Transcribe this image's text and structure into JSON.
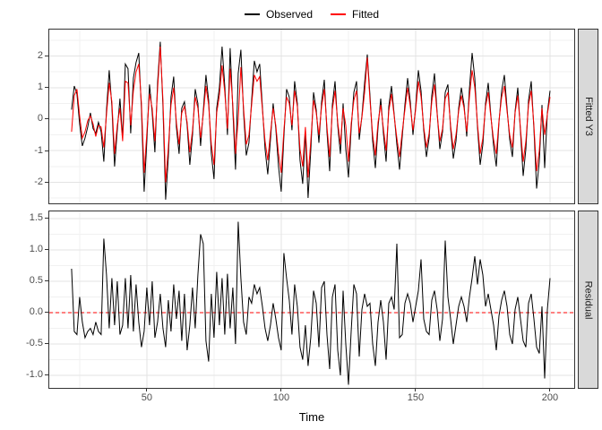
{
  "legend": {
    "items": [
      {
        "label": "Observed",
        "color": "#000000"
      },
      {
        "label": "Fitted",
        "color": "#ff0000"
      }
    ]
  },
  "xlabel": "Time",
  "colors": {
    "grid_major": "#e3e3e3",
    "grid_minor": "#f1f1f1",
    "panel_border": "#333333",
    "strip_fill": "#d9d9d9",
    "reference_line": "#ff0000",
    "observed": "#000000",
    "fitted": "#ff0000",
    "residual": "#000000"
  },
  "chart_data": [
    {
      "type": "line",
      "facet_label": "Fitted Y3",
      "x_start": 22,
      "x_step": 1,
      "xlim": [
        13.7,
        209
      ],
      "xticks": [
        50,
        100,
        150,
        200
      ],
      "xtick_labels": [
        "50",
        "100",
        "150",
        "200"
      ],
      "yticks": [
        2,
        1,
        0,
        -1,
        -2
      ],
      "ytick_labels": [
        "2",
        "1",
        "0",
        "-1",
        "-2"
      ],
      "ylim": [
        -2.67,
        2.84
      ],
      "grid": true,
      "legend_position": "top",
      "series": [
        {
          "name": "Observed",
          "color": "#000000",
          "values": [
            0.3,
            1.05,
            0.8,
            -0.15,
            -0.85,
            -0.6,
            -0.25,
            0.2,
            -0.3,
            -0.45,
            -0.1,
            -0.4,
            -1.35,
            0.3,
            1.55,
            0.4,
            -1.5,
            -0.35,
            0.65,
            -0.6,
            1.75,
            1.6,
            -0.45,
            1.3,
            1.8,
            2.1,
            0.3,
            -2.3,
            -0.7,
            1.1,
            0.2,
            -1.05,
            1.15,
            2.45,
            0.4,
            -2.55,
            -1.2,
            0.7,
            1.35,
            -0.25,
            -1.1,
            0.35,
            0.55,
            -0.2,
            -1.45,
            -0.5,
            0.95,
            0.5,
            -0.85,
            0.25,
            1.4,
            0.6,
            -1.1,
            -1.9,
            0.35,
            1.0,
            2.3,
            1.05,
            -0.5,
            2.25,
            0.3,
            -1.6,
            1.45,
            2.2,
            0.2,
            -1.15,
            -0.75,
            0.6,
            1.85,
            1.5,
            1.75,
            0.4,
            -0.95,
            -1.75,
            -0.65,
            0.5,
            -0.3,
            -1.5,
            -2.3,
            -0.55,
            0.95,
            0.7,
            -0.35,
            1.2,
            0.5,
            -1.3,
            -2.05,
            -0.4,
            -2.5,
            -1.0,
            0.85,
            0.3,
            -0.75,
            0.55,
            1.25,
            -0.4,
            -1.65,
            0.45,
            1.2,
            -0.2,
            -1.1,
            0.5,
            -0.95,
            -1.85,
            -0.3,
            0.85,
            1.2,
            -0.65,
            0.1,
            1.15,
            2.05,
            0.75,
            -0.7,
            -1.55,
            -0.25,
            0.65,
            -0.45,
            -1.35,
            0.4,
            1.05,
            0.15,
            -0.8,
            -1.6,
            -0.55,
            0.45,
            1.3,
            0.55,
            -0.5,
            0.4,
            1.55,
            0.9,
            -0.35,
            -1.2,
            -0.6,
            0.75,
            1.45,
            0.2,
            -0.95,
            -0.4,
            0.85,
            1.1,
            -0.3,
            -1.25,
            -0.7,
            0.35,
            1.0,
            0.45,
            -0.55,
            0.95,
            2.1,
            1.3,
            -0.25,
            -1.45,
            -0.8,
            0.5,
            1.15,
            0.1,
            -0.85,
            -1.5,
            -0.1,
            0.9,
            1.4,
            0.35,
            -0.65,
            -1.2,
            0.25,
            1.0,
            -0.4,
            -1.8,
            -0.95,
            0.6,
            1.2,
            -0.3,
            -2.2,
            -1.35,
            0.45,
            -1.55,
            0.2,
            0.9
          ]
        },
        {
          "name": "Fitted",
          "color": "#ff0000",
          "values": [
            -0.4,
            0.75,
            0.95,
            0.1,
            -0.6,
            -0.4,
            -0.05,
            0.1,
            -0.15,
            -0.55,
            -0.2,
            -0.25,
            -0.9,
            0.15,
            1.15,
            0.55,
            -1.1,
            -0.2,
            0.35,
            -0.7,
            1.2,
            1.15,
            -0.2,
            0.9,
            1.5,
            1.75,
            0.5,
            -1.7,
            -0.45,
            0.8,
            0.35,
            -0.7,
            0.95,
            2.3,
            0.6,
            -2.0,
            -0.9,
            0.45,
            1.0,
            -0.1,
            -0.8,
            0.2,
            0.4,
            -0.1,
            -1.05,
            -0.35,
            0.7,
            0.35,
            -0.6,
            0.15,
            1.05,
            0.45,
            -0.8,
            -1.45,
            0.2,
            0.75,
            1.7,
            0.85,
            -0.3,
            1.6,
            0.45,
            -1.1,
            0.0,
            1.65,
            0.35,
            -0.8,
            -0.5,
            0.45,
            1.4,
            1.2,
            1.35,
            0.3,
            -0.7,
            -1.3,
            -0.45,
            0.35,
            -0.2,
            -1.1,
            -1.7,
            -0.35,
            0.7,
            0.5,
            -0.2,
            0.9,
            0.4,
            -0.95,
            -1.5,
            -0.25,
            -1.85,
            -0.7,
            0.6,
            0.2,
            -0.5,
            0.4,
            0.95,
            -0.25,
            -1.2,
            0.3,
            0.9,
            -0.1,
            -0.8,
            0.35,
            -0.2,
            -1.35,
            -0.15,
            0.6,
            0.9,
            -0.45,
            0.05,
            0.85,
            1.95,
            0.6,
            -0.5,
            -1.15,
            -0.1,
            0.45,
            -0.3,
            -1.0,
            0.25,
            0.8,
            0.1,
            -0.6,
            -1.2,
            -0.4,
            0.3,
            1.0,
            0.4,
            -0.35,
            0.3,
            1.2,
            0.7,
            -0.25,
            -0.9,
            -0.45,
            0.55,
            1.1,
            0.15,
            -0.7,
            -0.3,
            0.65,
            0.85,
            -0.2,
            -0.95,
            -0.5,
            0.25,
            0.75,
            0.35,
            -0.4,
            0.7,
            1.55,
            1.0,
            -0.15,
            -1.1,
            -0.6,
            0.4,
            0.85,
            0.05,
            -0.65,
            -1.1,
            -0.05,
            0.7,
            1.05,
            0.25,
            -0.5,
            -0.9,
            0.2,
            0.75,
            -0.3,
            -1.35,
            -0.7,
            0.45,
            0.9,
            -0.2,
            -1.65,
            -1.0,
            0.35,
            -0.5,
            0.15,
            0.7
          ]
        }
      ]
    },
    {
      "type": "line",
      "facet_label": "Residual",
      "x_start": 22,
      "x_step": 1,
      "xlim": [
        13.7,
        209
      ],
      "xticks": [
        50,
        100,
        150,
        200
      ],
      "xtick_labels": [
        "50",
        "100",
        "150",
        "200"
      ],
      "yticks": [
        1.5,
        1.0,
        0.5,
        0.0,
        -0.5,
        -1.0
      ],
      "ytick_labels": [
        "1.5",
        "1.0",
        "0.5",
        "0.0",
        "-0.5",
        "-1.0"
      ],
      "ylim": [
        -1.2,
        1.614
      ],
      "grid": true,
      "ref_line": {
        "y": 0,
        "color": "#ff0000",
        "style": "dashed"
      },
      "series": [
        {
          "name": "Residual",
          "color": "#000000",
          "values": [
            0.7,
            -0.3,
            -0.35,
            0.25,
            -0.15,
            -0.4,
            -0.3,
            -0.25,
            -0.35,
            -0.15,
            -0.3,
            -0.35,
            1.18,
            0.6,
            -0.25,
            0.55,
            -0.2,
            0.5,
            -0.35,
            -0.2,
            0.55,
            -0.25,
            0.6,
            -0.3,
            0.45,
            -0.15,
            -0.55,
            -0.3,
            0.4,
            -0.2,
            0.5,
            -0.4,
            -0.15,
            0.3,
            -0.25,
            -0.55,
            0.2,
            -0.3,
            0.45,
            -0.1,
            0.35,
            -0.45,
            0.3,
            -0.6,
            -0.2,
            0.4,
            -0.25,
            0.6,
            1.25,
            1.1,
            -0.45,
            -0.78,
            0.3,
            -0.4,
            0.65,
            -0.2,
            0.55,
            -0.35,
            0.62,
            -0.25,
            0.4,
            -0.5,
            1.45,
            0.55,
            -0.15,
            -0.35,
            0.25,
            0.15,
            0.45,
            0.3,
            0.4,
            0.1,
            -0.25,
            -0.45,
            -0.2,
            0.15,
            -0.1,
            -0.4,
            -0.6,
            0.95,
            0.55,
            0.2,
            -0.35,
            0.45,
            0.1,
            -0.55,
            -0.75,
            -0.2,
            -0.85,
            -0.4,
            0.35,
            0.15,
            -0.55,
            0.4,
            0.5,
            -0.35,
            -0.9,
            0.25,
            0.45,
            -0.6,
            -1.0,
            0.35,
            -0.5,
            -1.15,
            -0.3,
            0.45,
            0.3,
            -0.7,
            0.05,
            0.3,
            0.1,
            0.15,
            -0.5,
            -0.85,
            -0.15,
            0.2,
            -0.15,
            -0.75,
            0.15,
            0.25,
            0.05,
            1.1,
            -0.4,
            -0.35,
            0.15,
            0.3,
            0.15,
            -0.15,
            0.1,
            0.35,
            0.85,
            -0.1,
            -0.3,
            -0.35,
            0.2,
            0.35,
            0.05,
            -0.45,
            -0.1,
            1.15,
            0.25,
            -0.1,
            -0.5,
            -0.2,
            0.1,
            0.25,
            0.1,
            -0.15,
            0.25,
            0.55,
            0.9,
            0.45,
            0.85,
            0.6,
            0.1,
            0.3,
            0.05,
            -0.2,
            -0.6,
            -0.05,
            0.2,
            0.35,
            0.1,
            -0.35,
            -0.5,
            0.05,
            0.25,
            -0.1,
            -0.45,
            -0.55,
            0.15,
            0.3,
            -0.1,
            -0.55,
            -0.65,
            0.1,
            -1.05,
            0.05,
            0.55
          ]
        }
      ]
    }
  ]
}
